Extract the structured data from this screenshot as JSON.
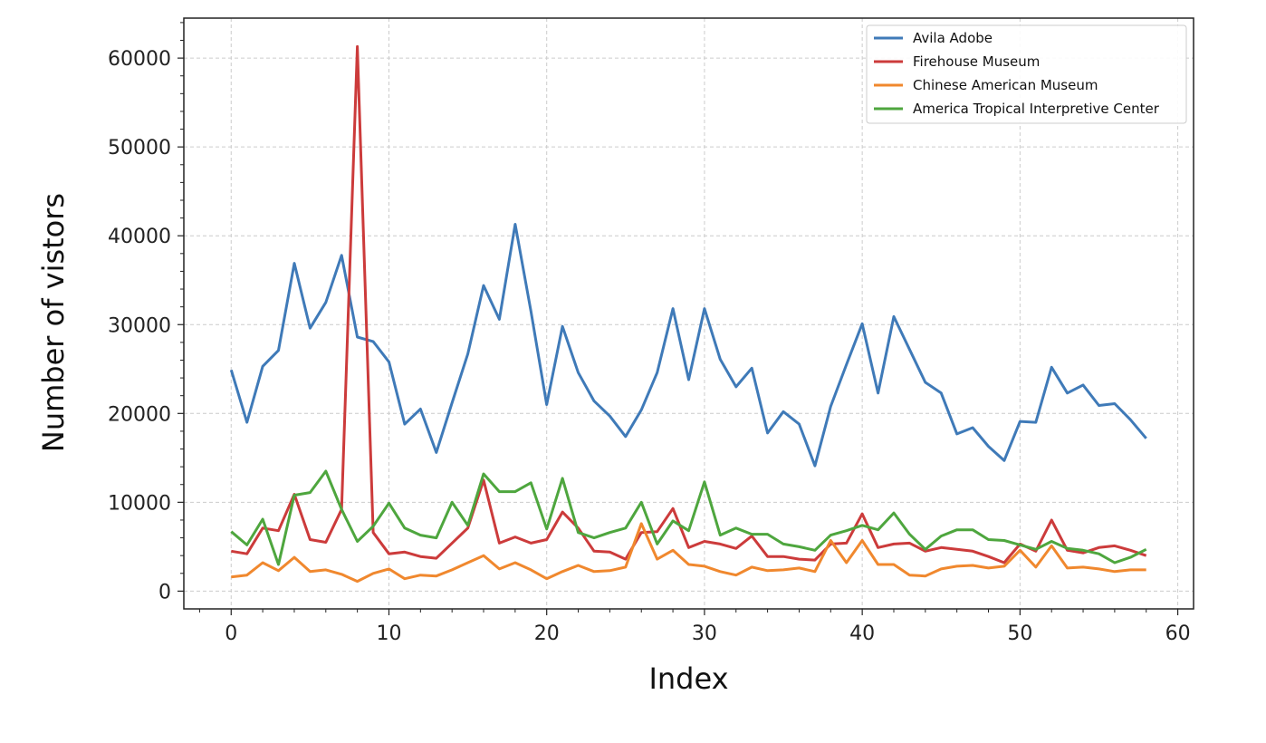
{
  "chart_data": {
    "type": "line",
    "xlabel": "Index",
    "ylabel": "Number of vistors",
    "xlim": [
      -3,
      61
    ],
    "ylim": [
      -2000,
      64500
    ],
    "xticks": [
      0,
      10,
      20,
      30,
      40,
      50,
      60
    ],
    "yticks": [
      0,
      10000,
      20000,
      30000,
      40000,
      50000,
      60000
    ],
    "grid": true,
    "legend_position": "top-right",
    "x": [
      0,
      1,
      2,
      3,
      4,
      5,
      6,
      7,
      8,
      9,
      10,
      11,
      12,
      13,
      14,
      15,
      16,
      17,
      18,
      19,
      20,
      21,
      22,
      23,
      24,
      25,
      26,
      27,
      28,
      29,
      30,
      31,
      32,
      33,
      34,
      35,
      36,
      37,
      38,
      39,
      40,
      41,
      42,
      43,
      44,
      45,
      46,
      47,
      48,
      49,
      50,
      51,
      52,
      53,
      54,
      55,
      56,
      57,
      58
    ],
    "series": [
      {
        "name": "Avila Adobe",
        "color": "#3f7ab8",
        "values": [
          24900,
          19000,
          25300,
          27100,
          36900,
          29600,
          32500,
          37800,
          28600,
          28100,
          25800,
          18800,
          20500,
          15600,
          21200,
          26700,
          34400,
          30600,
          41300,
          31500,
          21000,
          29800,
          24600,
          21400,
          19700,
          17400,
          20400,
          24600,
          31800,
          23800,
          31800,
          26100,
          23000,
          25100,
          17800,
          20200,
          18800,
          14100,
          20800,
          25500,
          30100,
          22300,
          30900,
          27200,
          23500,
          22300,
          17700,
          18400,
          16300,
          14700,
          19100,
          19000,
          25200,
          22300,
          23200,
          20900,
          21100,
          19300,
          17200
        ]
      },
      {
        "name": "Firehouse Museum",
        "color": "#cc3b3b",
        "values": [
          4500,
          4200,
          7100,
          6800,
          10900,
          5800,
          5500,
          9200,
          61300,
          6600,
          4200,
          4400,
          3900,
          3700,
          5400,
          7100,
          12500,
          5400,
          6100,
          5400,
          5800,
          8900,
          7100,
          4500,
          4400,
          3600,
          6600,
          6700,
          9300,
          4900,
          5600,
          5300,
          4800,
          6200,
          3900,
          3900,
          3600,
          3500,
          5300,
          5400,
          8700,
          4900,
          5300,
          5400,
          4500,
          4900,
          4700,
          4500,
          3900,
          3200,
          5300,
          4500,
          8000,
          4600,
          4300,
          4900,
          5100,
          4600,
          4000
        ]
      },
      {
        "name": "Chinese American Museum",
        "color": "#f0882e",
        "values": [
          1600,
          1800,
          3200,
          2300,
          3800,
          2200,
          2400,
          1900,
          1100,
          2000,
          2500,
          1400,
          1800,
          1700,
          2400,
          3200,
          4000,
          2500,
          3200,
          2400,
          1400,
          2200,
          2900,
          2200,
          2300,
          2700,
          7600,
          3600,
          4600,
          3000,
          2800,
          2200,
          1800,
          2700,
          2300,
          2400,
          2600,
          2200,
          5700,
          3200,
          5700,
          3000,
          3000,
          1800,
          1700,
          2500,
          2800,
          2900,
          2600,
          2800,
          4600,
          2700,
          5100,
          2600,
          2700,
          2500,
          2200,
          2400,
          2400
        ]
      },
      {
        "name": "America Tropical Interpretive Center",
        "color": "#4ea63e",
        "values": [
          6700,
          5200,
          8100,
          3000,
          10800,
          11100,
          13500,
          9200,
          5600,
          7300,
          9900,
          7100,
          6300,
          6000,
          10000,
          7400,
          13200,
          11200,
          11200,
          12200,
          7000,
          12700,
          6600,
          6000,
          6600,
          7100,
          10000,
          5300,
          7900,
          6800,
          12300,
          6300,
          7100,
          6400,
          6400,
          5300,
          5000,
          4600,
          6300,
          6800,
          7400,
          6900,
          8800,
          6400,
          4700,
          6200,
          6900,
          6900,
          5800,
          5700,
          5200,
          4700,
          5600,
          4800,
          4600,
          4200,
          3200,
          3800,
          4700
        ]
      }
    ]
  }
}
